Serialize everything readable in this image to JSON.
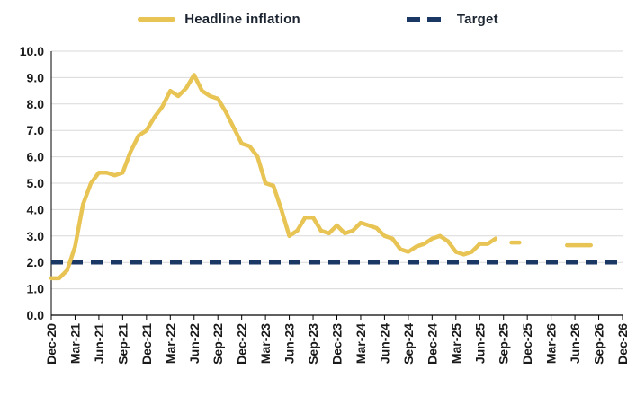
{
  "chart_data": {
    "type": "line",
    "title": "",
    "xlabel": "",
    "ylabel": "",
    "grid": "horizontal",
    "legend_position": "top",
    "y_axis": {
      "min": 0,
      "max": 10,
      "step": 1,
      "tick_labels": [
        "0.0",
        "1.0",
        "2.0",
        "3.0",
        "4.0",
        "5.0",
        "6.0",
        "7.0",
        "8.0",
        "9.0",
        "10.0"
      ]
    },
    "x_axis": {
      "total_months": 73,
      "tick_every": 3,
      "tick_labels": [
        "Dec-20",
        "Mar-21",
        "Jun-21",
        "Sep-21",
        "Dec-21",
        "Mar-22",
        "Jun-22",
        "Sep-22",
        "Dec-22",
        "Mar-23",
        "Jun-23",
        "Sep-23",
        "Dec-23",
        "Mar-24",
        "Jun-24",
        "Sep-24",
        "Dec-24",
        "Mar-25",
        "Jun-25",
        "Sep-25",
        "Dec-25",
        "Mar-26",
        "Jun-26",
        "Sep-26",
        "Dec-26"
      ]
    },
    "series": [
      {
        "name": "Headline inflation",
        "color": "#E8C454",
        "style": "solid",
        "values": [
          1.4,
          1.4,
          1.7,
          2.6,
          4.2,
          5.0,
          5.4,
          5.4,
          5.3,
          5.4,
          6.2,
          6.8,
          7.0,
          7.5,
          7.9,
          8.5,
          8.3,
          8.6,
          9.1,
          8.5,
          8.3,
          8.2,
          7.7,
          7.1,
          6.5,
          6.4,
          6.0,
          5.0,
          4.9,
          4.0,
          3.0,
          3.2,
          3.7,
          3.7,
          3.2,
          3.1,
          3.4,
          3.1,
          3.2,
          3.5,
          3.4,
          3.3,
          3.0,
          2.9,
          2.5,
          2.4,
          2.6,
          2.7,
          2.9,
          3.0,
          2.8,
          2.4,
          2.3,
          2.4,
          2.7,
          2.7,
          2.9,
          null,
          2.75,
          2.75,
          null,
          null,
          null,
          null,
          null,
          2.65,
          2.65,
          2.65,
          2.65,
          null,
          null,
          null,
          null
        ]
      },
      {
        "name": "Target",
        "color": "#1B3764",
        "style": "dashed",
        "constant_value": 2.0
      }
    ],
    "colors": {
      "gridline": "#D9D9D9",
      "axis": "#000000",
      "tick_text": "#1a1a1a"
    }
  }
}
